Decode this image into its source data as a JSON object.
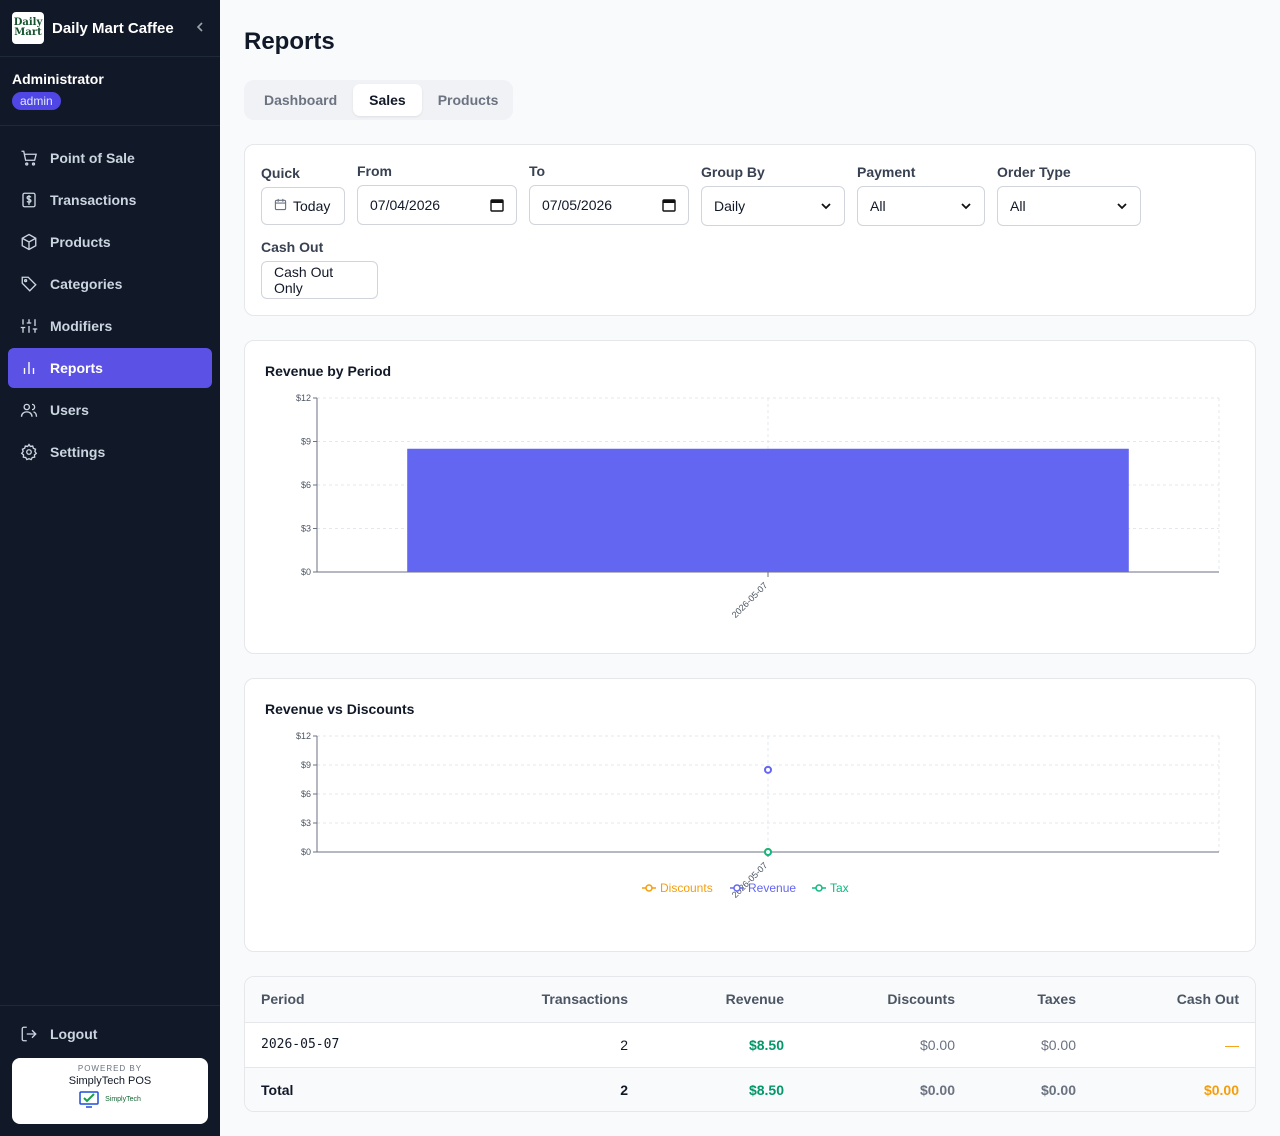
{
  "brand": {
    "logo_line1": "Daily",
    "logo_line2": "Mart",
    "name": "Daily Mart Caffee"
  },
  "user": {
    "name": "Administrator",
    "role": "admin"
  },
  "nav": [
    {
      "label": "Point of Sale",
      "icon": "cart-icon"
    },
    {
      "label": "Transactions",
      "icon": "dollar-doc-icon"
    },
    {
      "label": "Products",
      "icon": "box-icon"
    },
    {
      "label": "Categories",
      "icon": "tag-icon"
    },
    {
      "label": "Modifiers",
      "icon": "sliders-icon"
    },
    {
      "label": "Reports",
      "icon": "bar-chart-icon",
      "active": true
    },
    {
      "label": "Users",
      "icon": "users-icon"
    },
    {
      "label": "Settings",
      "icon": "gear-icon"
    }
  ],
  "logout_label": "Logout",
  "powered": {
    "by": "POWERED BY",
    "name": "SimplyTech POS",
    "logo_text": "SimplyTech"
  },
  "page_title": "Reports",
  "tabs": [
    "Dashboard",
    "Sales",
    "Products"
  ],
  "filters": {
    "quick_label": "Quick",
    "today_label": "Today",
    "from_label": "From",
    "from_value": "07/04/2026",
    "to_label": "To",
    "to_value": "07/05/2026",
    "group_by_label": "Group By",
    "group_by_value": "Daily",
    "payment_label": "Payment",
    "payment_value": "All",
    "order_type_label": "Order Type",
    "order_type_value": "All",
    "cash_out_label": "Cash Out",
    "cash_out_button": "Cash Out Only"
  },
  "colors": {
    "accent": "#5b52e5",
    "bar": "#6366f1",
    "revenue": "#6366f1",
    "discounts": "#f59e0b",
    "tax": "#10b981"
  },
  "chart_data": [
    {
      "type": "bar",
      "title": "Revenue by Period",
      "categories": [
        "2026-05-07"
      ],
      "values": [
        8.5
      ],
      "yticks": [
        "$0",
        "$3",
        "$6",
        "$9",
        "$12"
      ],
      "ylim": [
        0,
        12
      ],
      "grid": true
    },
    {
      "type": "line",
      "title": "Revenue vs Discounts",
      "categories": [
        "2026-05-07"
      ],
      "series": [
        {
          "name": "Discounts",
          "values": [
            0
          ],
          "color": "#f59e0b"
        },
        {
          "name": "Revenue",
          "values": [
            8.5
          ],
          "color": "#6366f1"
        },
        {
          "name": "Tax",
          "values": [
            0
          ],
          "color": "#10b981"
        }
      ],
      "yticks": [
        "$0",
        "$3",
        "$6",
        "$9",
        "$12"
      ],
      "ylim": [
        0,
        12
      ],
      "grid": true,
      "legend": "bottom"
    }
  ],
  "table": {
    "headers": [
      "Period",
      "Transactions",
      "Revenue",
      "Discounts",
      "Taxes",
      "Cash Out"
    ],
    "rows": [
      {
        "period": "2026-05-07",
        "transactions": "2",
        "revenue": "$8.50",
        "discounts": "$0.00",
        "taxes": "$0.00",
        "cash_out": "—"
      }
    ],
    "total": {
      "label": "Total",
      "transactions": "2",
      "revenue": "$8.50",
      "discounts": "$0.00",
      "taxes": "$0.00",
      "cash_out": "$0.00"
    }
  }
}
